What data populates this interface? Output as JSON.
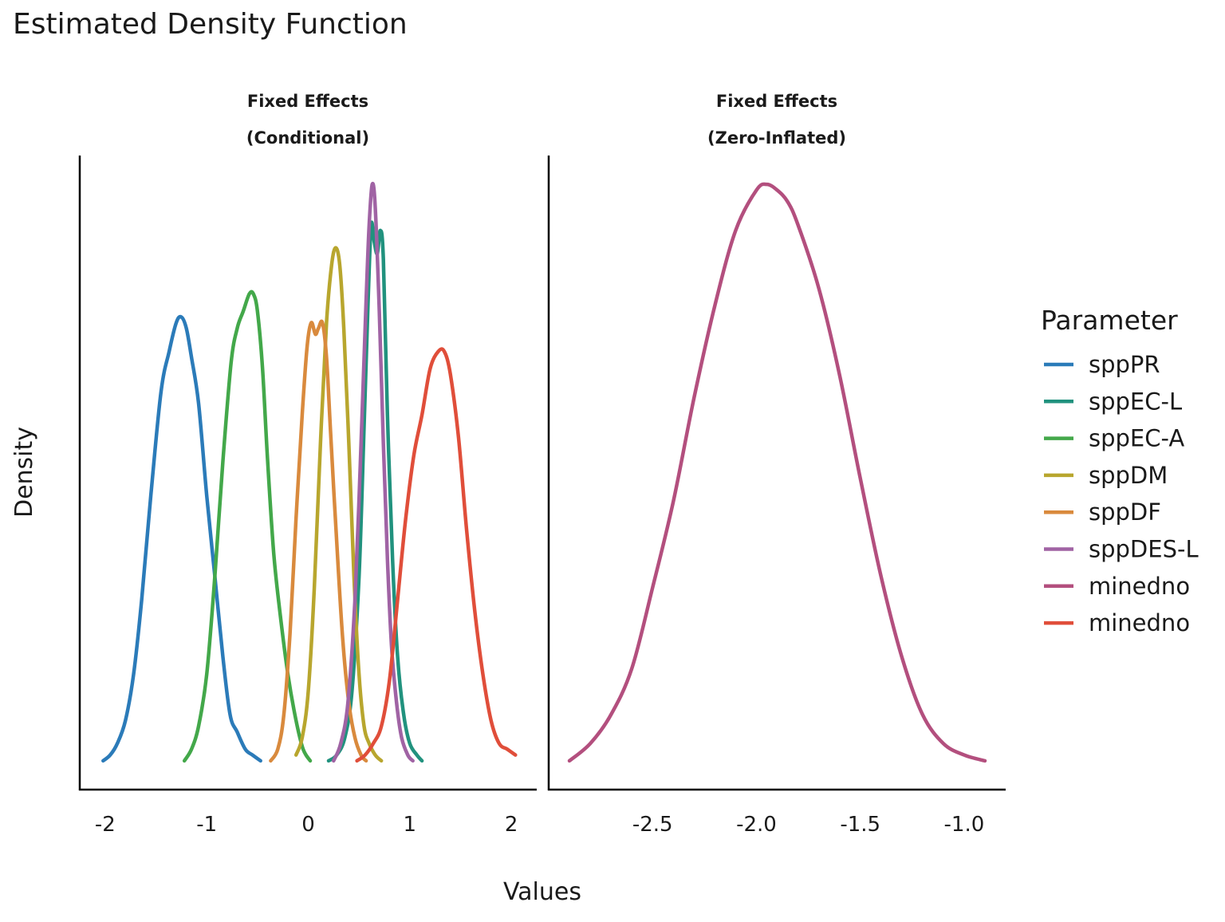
{
  "chart_data": {
    "type": "line",
    "title": "Estimated Density Function",
    "xlabel": "Values",
    "ylabel": "Density",
    "legend": {
      "title": "Parameter",
      "placement": "right"
    },
    "grid": false,
    "panels": [
      {
        "strip_line1": "Fixed Effects",
        "strip_line2": "(Conditional)",
        "xlim": [
          -2.25,
          2.25
        ],
        "ylim": [
          -0.05,
          1.05
        ],
        "xticks": [
          -2,
          -1,
          0,
          1,
          2
        ],
        "xtick_labels": [
          "-2",
          "-1",
          "0",
          "1",
          "2"
        ],
        "series": [
          {
            "name": "sppPR",
            "color": "#2b7bb9",
            "x": [
              -2.02,
              -1.95,
              -1.88,
              -1.8,
              -1.72,
              -1.64,
              -1.55,
              -1.45,
              -1.37,
              -1.3,
              -1.25,
              -1.2,
              -1.15,
              -1.08,
              -1.0,
              -0.92,
              -0.84,
              -0.77,
              -0.7,
              -0.62,
              -0.55,
              -0.47
            ],
            "y": [
              0.0,
              0.01,
              0.03,
              0.07,
              0.15,
              0.28,
              0.46,
              0.64,
              0.71,
              0.76,
              0.77,
              0.75,
              0.7,
              0.62,
              0.46,
              0.32,
              0.18,
              0.08,
              0.05,
              0.02,
              0.01,
              0.0
            ]
          },
          {
            "name": "sppEC-L",
            "color": "#21927e",
            "x": [
              0.2,
              0.28,
              0.36,
              0.43,
              0.5,
              0.55,
              0.59,
              0.62,
              0.65,
              0.68,
              0.71,
              0.74,
              0.78,
              0.83,
              0.88,
              0.94,
              1.0,
              1.07,
              1.12
            ],
            "y": [
              0.0,
              0.01,
              0.04,
              0.12,
              0.32,
              0.58,
              0.8,
              0.93,
              0.9,
              0.88,
              0.92,
              0.87,
              0.6,
              0.35,
              0.18,
              0.08,
              0.03,
              0.01,
              0.0
            ]
          },
          {
            "name": "sppEC-A",
            "color": "#43a84a",
            "x": [
              -1.22,
              -1.15,
              -1.08,
              -1.0,
              -0.92,
              -0.84,
              -0.76,
              -0.7,
              -0.64,
              -0.58,
              -0.54,
              -0.5,
              -0.45,
              -0.4,
              -0.34,
              -0.28,
              -0.2,
              -0.12,
              -0.05,
              0.02
            ],
            "y": [
              0.0,
              0.02,
              0.06,
              0.15,
              0.32,
              0.52,
              0.69,
              0.75,
              0.78,
              0.81,
              0.81,
              0.78,
              0.68,
              0.52,
              0.36,
              0.26,
              0.15,
              0.07,
              0.02,
              0.0
            ]
          },
          {
            "name": "sppDM",
            "color": "#b8a62e",
            "x": [
              -0.12,
              -0.06,
              0.0,
              0.06,
              0.12,
              0.18,
              0.23,
              0.27,
              0.31,
              0.35,
              0.4,
              0.45,
              0.5,
              0.55,
              0.6,
              0.66,
              0.72
            ],
            "y": [
              0.01,
              0.04,
              0.12,
              0.3,
              0.55,
              0.76,
              0.86,
              0.89,
              0.86,
              0.75,
              0.55,
              0.32,
              0.15,
              0.06,
              0.03,
              0.01,
              0.0
            ]
          },
          {
            "name": "sppDF",
            "color": "#d98a3d",
            "x": [
              -0.37,
              -0.3,
              -0.24,
              -0.18,
              -0.12,
              -0.06,
              -0.01,
              0.03,
              0.07,
              0.1,
              0.14,
              0.18,
              0.22,
              0.28,
              0.34,
              0.4,
              0.46,
              0.52,
              0.57
            ],
            "y": [
              0.0,
              0.02,
              0.08,
              0.22,
              0.42,
              0.6,
              0.72,
              0.76,
              0.74,
              0.75,
              0.76,
              0.7,
              0.57,
              0.38,
              0.21,
              0.1,
              0.04,
              0.01,
              0.0
            ]
          },
          {
            "name": "sppDES-L",
            "color": "#a063a4",
            "x": [
              0.25,
              0.32,
              0.39,
              0.46,
              0.52,
              0.57,
              0.6,
              0.63,
              0.66,
              0.7,
              0.74,
              0.78,
              0.82,
              0.87,
              0.92,
              0.98,
              1.03
            ],
            "y": [
              0.0,
              0.03,
              0.1,
              0.28,
              0.55,
              0.8,
              0.93,
              1.0,
              0.96,
              0.78,
              0.55,
              0.35,
              0.2,
              0.1,
              0.04,
              0.01,
              0.0
            ]
          },
          {
            "name": "minedno",
            "color": "#e04e3a",
            "x": [
              0.48,
              0.56,
              0.64,
              0.72,
              0.8,
              0.88,
              0.96,
              1.04,
              1.12,
              1.2,
              1.28,
              1.34,
              1.4,
              1.48,
              1.56,
              1.64,
              1.72,
              1.8,
              1.88,
              1.96,
              2.04
            ],
            "y": [
              0.0,
              0.01,
              0.03,
              0.06,
              0.14,
              0.28,
              0.42,
              0.53,
              0.6,
              0.68,
              0.71,
              0.71,
              0.67,
              0.56,
              0.4,
              0.26,
              0.15,
              0.07,
              0.03,
              0.02,
              0.01
            ]
          }
        ]
      },
      {
        "strip_line1": "Fixed Effects",
        "strip_line2": "(Zero-Inflated)",
        "xlim": [
          -3.0,
          -0.8
        ],
        "ylim": [
          -0.05,
          1.05
        ],
        "xticks": [
          -2.5,
          -2.0,
          -1.5,
          -1.0
        ],
        "xtick_labels": [
          "-2.5",
          "-2.0",
          "-1.5",
          "-1.0"
        ],
        "series": [
          {
            "name": "minedno",
            "color": "#b34f7e",
            "x": [
              -2.9,
              -2.8,
              -2.7,
              -2.6,
              -2.5,
              -2.4,
              -2.3,
              -2.2,
              -2.1,
              -2.0,
              -1.95,
              -1.9,
              -1.85,
              -1.8,
              -1.7,
              -1.6,
              -1.5,
              -1.4,
              -1.3,
              -1.2,
              -1.1,
              -1.0,
              -0.9
            ],
            "y": [
              0.0,
              0.03,
              0.08,
              0.16,
              0.3,
              0.45,
              0.63,
              0.79,
              0.92,
              0.99,
              1.0,
              0.99,
              0.97,
              0.93,
              0.82,
              0.67,
              0.49,
              0.32,
              0.18,
              0.08,
              0.03,
              0.01,
              0.0
            ]
          }
        ]
      }
    ]
  }
}
